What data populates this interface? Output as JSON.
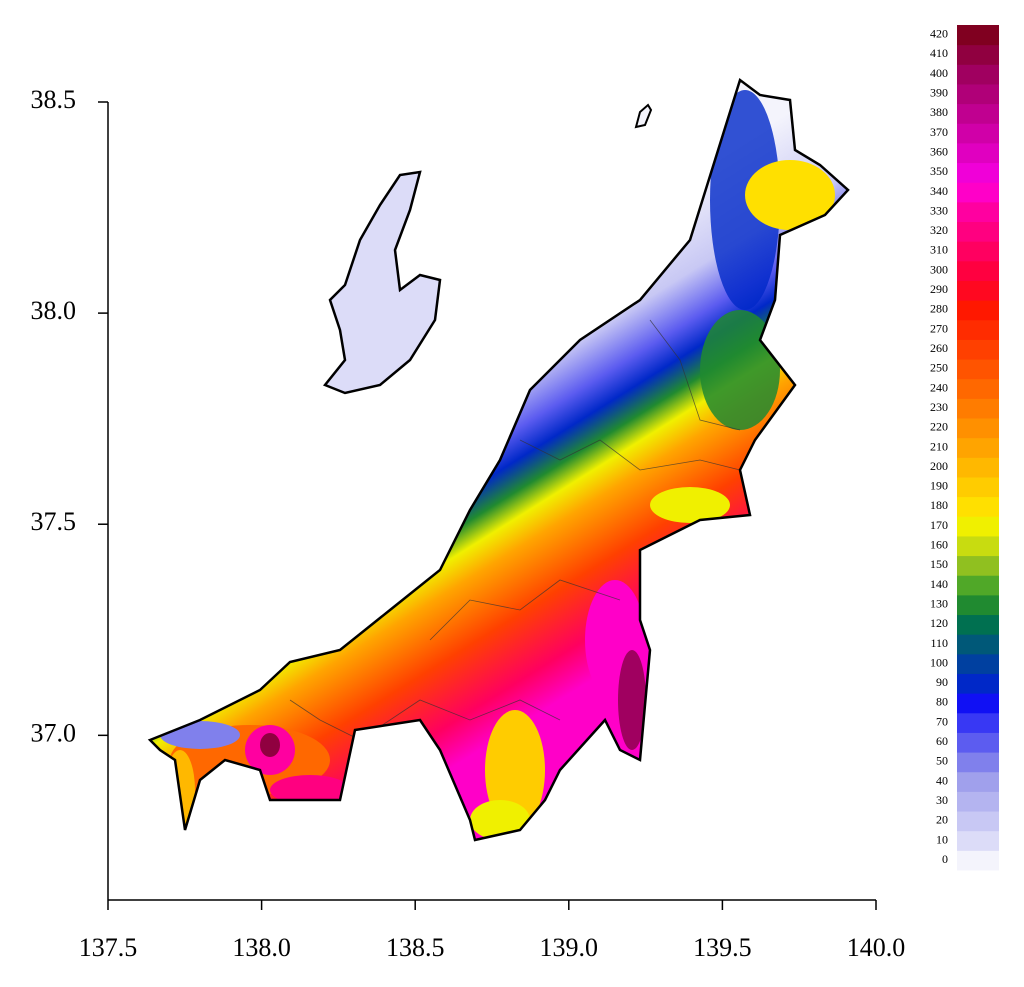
{
  "chart_data": {
    "type": "contour-map",
    "xlim": [
      137.5,
      140.0
    ],
    "xticks": [
      137.5,
      {
        "value": 138,
        "label": "138.0"
      },
      138.5,
      {
        "value": 139,
        "label": "139.0"
      },
      139.5,
      {
        "value": 140,
        "label": "140.0"
      }
    ],
    "ylim": [
      36.61,
      38.5
    ],
    "yticks": [
      {
        "value": 37,
        "label": "37.0"
      },
      37.5,
      {
        "value": 38,
        "label": "38.0"
      },
      38.5
    ],
    "legend": {
      "position": "right",
      "levels": [
        0,
        10,
        20,
        30,
        40,
        50,
        60,
        70,
        80,
        90,
        100,
        110,
        120,
        130,
        140,
        150,
        160,
        170,
        180,
        190,
        200,
        210,
        220,
        230,
        240,
        250,
        260,
        270,
        280,
        290,
        300,
        310,
        320,
        330,
        340,
        350,
        360,
        370,
        380,
        390,
        400,
        410,
        420
      ],
      "colors": [
        "#f4f4fc",
        "#dcdcf8",
        "#c8c8f4",
        "#b4b4f0",
        "#a0a0ec",
        "#8080ec",
        "#5c5cf0",
        "#3838f4",
        "#1010f4",
        "#0028c8",
        "#0040a0",
        "#005878",
        "#007050",
        "#208a30",
        "#50a828",
        "#90c020",
        "#c8dc10",
        "#f0f000",
        "#ffe000",
        "#ffcc00",
        "#ffb800",
        "#ffa400",
        "#ff9000",
        "#ff7c00",
        "#ff6800",
        "#ff5400",
        "#ff4000",
        "#ff2c00",
        "#ff1800",
        "#ff0820",
        "#ff0040",
        "#ff0060",
        "#ff0080",
        "#ff00a0",
        "#ff00c8",
        "#f000d8",
        "#e000c0",
        "#d000a8",
        "#c00090",
        "#b00078",
        "#a00060",
        "#900040",
        "#800020"
      ]
    }
  }
}
